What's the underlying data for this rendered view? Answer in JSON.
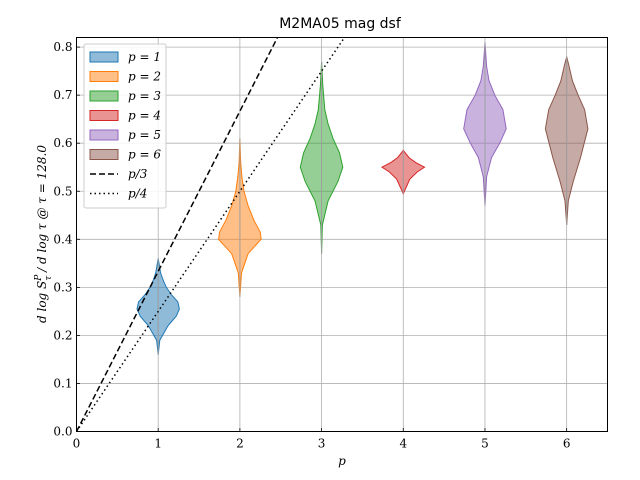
{
  "chart_data": {
    "type": "violin",
    "title": "M2MA05 mag dsf",
    "xlabel": "p",
    "ylabel": "d log S_τ^P / d log τ @ τ = 128.0",
    "xlim": [
      0,
      6.5
    ],
    "ylim": [
      0,
      0.82
    ],
    "xticks": [
      0,
      1,
      2,
      3,
      4,
      5,
      6
    ],
    "yticks": [
      0.0,
      0.1,
      0.2,
      0.3,
      0.4,
      0.5,
      0.6,
      0.7,
      0.8
    ],
    "grid": true,
    "legend_position": "top-left",
    "series": [
      {
        "name": "p = 1",
        "p": 1,
        "color": "#1f77b4",
        "min": 0.16,
        "max": 0.36,
        "profile": [
          [
            0.16,
            0.0
          ],
          [
            0.19,
            0.02
          ],
          [
            0.22,
            0.12
          ],
          [
            0.24,
            0.22
          ],
          [
            0.255,
            0.26
          ],
          [
            0.27,
            0.24
          ],
          [
            0.285,
            0.16
          ],
          [
            0.3,
            0.1
          ],
          [
            0.315,
            0.06
          ],
          [
            0.33,
            0.03
          ],
          [
            0.36,
            0.0
          ]
        ]
      },
      {
        "name": "p = 2",
        "p": 2,
        "color": "#ff7f0e",
        "min": 0.28,
        "max": 0.61,
        "profile": [
          [
            0.28,
            0.0
          ],
          [
            0.33,
            0.02
          ],
          [
            0.37,
            0.1
          ],
          [
            0.4,
            0.26
          ],
          [
            0.415,
            0.25
          ],
          [
            0.44,
            0.17
          ],
          [
            0.47,
            0.1
          ],
          [
            0.5,
            0.05
          ],
          [
            0.53,
            0.025
          ],
          [
            0.56,
            0.01
          ],
          [
            0.61,
            0.0
          ]
        ]
      },
      {
        "name": "p = 3",
        "p": 3,
        "color": "#2ca02c",
        "min": 0.37,
        "max": 0.77,
        "profile": [
          [
            0.37,
            0.0
          ],
          [
            0.43,
            0.01
          ],
          [
            0.48,
            0.08
          ],
          [
            0.52,
            0.2
          ],
          [
            0.55,
            0.26
          ],
          [
            0.58,
            0.22
          ],
          [
            0.61,
            0.14
          ],
          [
            0.64,
            0.08
          ],
          [
            0.67,
            0.04
          ],
          [
            0.72,
            0.015
          ],
          [
            0.77,
            0.0
          ]
        ]
      },
      {
        "name": "p = 4",
        "p": 4,
        "color": "#d62728",
        "min": 0.495,
        "max": 0.585,
        "profile": [
          [
            0.495,
            0.0
          ],
          [
            0.51,
            0.04
          ],
          [
            0.525,
            0.08
          ],
          [
            0.54,
            0.17
          ],
          [
            0.55,
            0.26
          ],
          [
            0.56,
            0.15
          ],
          [
            0.57,
            0.07
          ],
          [
            0.585,
            0.0
          ]
        ]
      },
      {
        "name": "p = 5",
        "p": 5,
        "color": "#9467bd",
        "min": 0.47,
        "max": 0.81,
        "profile": [
          [
            0.47,
            0.0
          ],
          [
            0.53,
            0.02
          ],
          [
            0.57,
            0.08
          ],
          [
            0.6,
            0.18
          ],
          [
            0.63,
            0.26
          ],
          [
            0.67,
            0.22
          ],
          [
            0.7,
            0.12
          ],
          [
            0.73,
            0.05
          ],
          [
            0.76,
            0.02
          ],
          [
            0.81,
            0.0
          ]
        ]
      },
      {
        "name": "p = 6",
        "p": 6,
        "color": "#8c564b",
        "min": 0.43,
        "max": 0.78,
        "profile": [
          [
            0.43,
            0.0
          ],
          [
            0.48,
            0.02
          ],
          [
            0.52,
            0.08
          ],
          [
            0.57,
            0.17
          ],
          [
            0.63,
            0.26
          ],
          [
            0.67,
            0.22
          ],
          [
            0.7,
            0.14
          ],
          [
            0.73,
            0.07
          ],
          [
            0.76,
            0.03
          ],
          [
            0.78,
            0.0
          ]
        ]
      }
    ],
    "reference_lines": [
      {
        "name": "p/3",
        "slope": 0.3333333,
        "style": "dashed"
      },
      {
        "name": "p/4",
        "slope": 0.25,
        "style": "dotted"
      }
    ]
  }
}
